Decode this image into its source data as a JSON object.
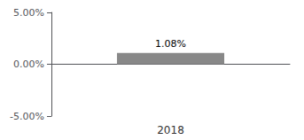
{
  "chart_data": {
    "type": "bar",
    "xlabel": "2018",
    "categories": [
      "2018"
    ],
    "values": [
      1.08
    ],
    "value_labels": [
      "1.08%"
    ],
    "data_labels": true,
    "color": "#888888",
    "ylim": [
      -5.0,
      5.0
    ],
    "yticks": [
      {
        "value": -5.0,
        "label": "-5.00%"
      },
      {
        "value": 0.0,
        "label": "0.00%"
      },
      {
        "value": 5.0,
        "label": "5.00%"
      }
    ],
    "tick_labels": "y",
    "grid": false
  }
}
